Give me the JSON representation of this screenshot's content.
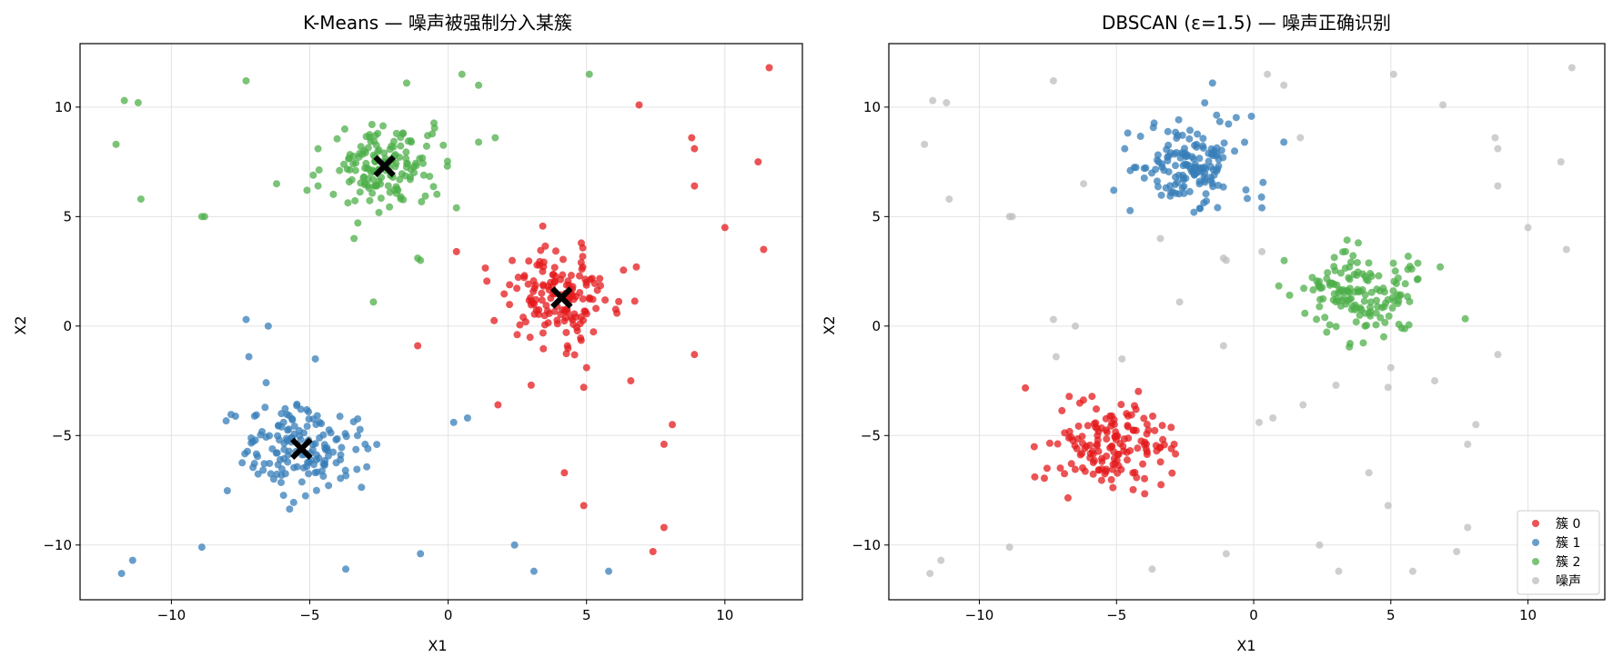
{
  "chart_data": [
    {
      "type": "scatter",
      "title": "K-Means — 噪声被强制分入某簇",
      "xlabel": "X1",
      "ylabel": "X2",
      "xlim": [
        -13.3,
        12.8
      ],
      "ylim": [
        -12.5,
        12.9
      ],
      "xticks": [
        -10,
        -5,
        0,
        5,
        10
      ],
      "yticks": [
        -10,
        -5,
        0,
        5,
        10
      ],
      "xtick_labels": [
        "−10",
        "−5",
        "0",
        "5",
        "10"
      ],
      "ytick_labels": [
        "−10",
        "−5",
        "0",
        "5",
        "10"
      ],
      "grid": true,
      "series": [
        {
          "color": "#e41a1c",
          "blobs": [
            {
              "center": [
                4.0,
                1.4
              ],
              "std": 1.05,
              "count": 150
            }
          ],
          "points": [
            [
              6.9,
              10.1
            ],
            [
              11.6,
              11.8
            ],
            [
              8.8,
              8.6
            ],
            [
              8.9,
              8.1
            ],
            [
              11.2,
              7.5
            ],
            [
              8.9,
              6.4
            ],
            [
              10.0,
              4.5
            ],
            [
              11.4,
              3.5
            ],
            [
              0.3,
              3.4
            ],
            [
              6.8,
              2.7
            ],
            [
              -1.1,
              -0.9
            ],
            [
              8.9,
              -1.3
            ],
            [
              5.0,
              -1.9
            ],
            [
              3.0,
              -2.7
            ],
            [
              4.9,
              -2.8
            ],
            [
              6.6,
              -2.5
            ],
            [
              1.8,
              -3.6
            ],
            [
              8.1,
              -4.5
            ],
            [
              7.8,
              -5.4
            ],
            [
              4.2,
              -6.7
            ],
            [
              4.9,
              -8.2
            ],
            [
              7.8,
              -9.2
            ],
            [
              7.4,
              -10.3
            ]
          ]
        },
        {
          "color": "#377eb8",
          "blobs": [
            {
              "center": [
                -5.4,
                -5.6
              ],
              "std": 1.05,
              "count": 150
            }
          ],
          "points": [
            [
              -7.3,
              0.3
            ],
            [
              -6.5,
              0.0
            ],
            [
              -7.2,
              -1.4
            ],
            [
              -4.8,
              -1.5
            ],
            [
              0.2,
              -4.4
            ],
            [
              0.7,
              -4.2
            ],
            [
              -2.9,
              -5.6
            ],
            [
              -3.0,
              -5.4
            ],
            [
              -8.9,
              -10.1
            ],
            [
              -11.4,
              -10.7
            ],
            [
              -11.8,
              -11.3
            ],
            [
              -3.7,
              -11.1
            ],
            [
              -1.0,
              -10.4
            ],
            [
              2.4,
              -10.0
            ],
            [
              3.1,
              -11.2
            ],
            [
              5.8,
              -11.2
            ]
          ]
        },
        {
          "color": "#4daf4a",
          "blobs": [
            {
              "center": [
                -2.2,
                7.3
              ],
              "std": 1.0,
              "count": 150
            }
          ],
          "points": [
            [
              -11.7,
              10.3
            ],
            [
              -11.2,
              10.2
            ],
            [
              -7.3,
              11.2
            ],
            [
              -12.0,
              8.3
            ],
            [
              -11.1,
              5.8
            ],
            [
              -8.8,
              5.0
            ],
            [
              -8.9,
              5.0
            ],
            [
              -6.2,
              6.5
            ],
            [
              -5.1,
              6.2
            ],
            [
              -4.7,
              6.4
            ],
            [
              0.3,
              5.4
            ],
            [
              1.1,
              8.4
            ],
            [
              1.7,
              8.6
            ],
            [
              0.5,
              11.5
            ],
            [
              1.1,
              11.0
            ],
            [
              5.1,
              11.5
            ],
            [
              -1.5,
              11.1
            ],
            [
              -3.4,
              4.0
            ],
            [
              -1.1,
              3.1
            ],
            [
              -1.0,
              3.0
            ],
            [
              -2.7,
              1.1
            ],
            [
              -4.7,
              8.1
            ]
          ]
        }
      ],
      "centroids": [
        [
          -2.3,
          7.3
        ],
        [
          4.1,
          1.3
        ],
        [
          -5.3,
          -5.6
        ]
      ],
      "centroid_color": "#000000"
    },
    {
      "type": "scatter",
      "title": "DBSCAN (ε=1.5) — 噪声正确识别",
      "xlabel": "X1",
      "ylabel": "X2",
      "xlim": [
        -13.3,
        12.8
      ],
      "ylim": [
        -12.5,
        12.9
      ],
      "xticks": [
        -10,
        -5,
        0,
        5,
        10
      ],
      "yticks": [
        -10,
        -5,
        0,
        5,
        10
      ],
      "xtick_labels": [
        "−10",
        "−5",
        "0",
        "5",
        "10"
      ],
      "ytick_labels": [
        "−10",
        "−5",
        "0",
        "5",
        "10"
      ],
      "grid": true,
      "legend_position": "lower-right",
      "series": [
        {
          "name": "簇 0",
          "color": "#e41a1c",
          "blobs": [
            {
              "center": [
                -5.4,
                -5.6
              ],
              "std": 1.05,
              "count": 150
            }
          ],
          "points": [
            [
              -3.0,
              -5.6
            ],
            [
              -2.9,
              -5.4
            ]
          ]
        },
        {
          "name": "簇 1",
          "color": "#377eb8",
          "blobs": [
            {
              "center": [
                -2.2,
                7.3
              ],
              "std": 1.0,
              "count": 150
            }
          ],
          "points": [
            [
              -4.7,
              8.1
            ],
            [
              -5.1,
              6.2
            ],
            [
              0.3,
              5.4
            ],
            [
              1.1,
              8.4
            ],
            [
              -1.5,
              11.1
            ]
          ]
        },
        {
          "name": "簇 2",
          "color": "#4daf4a",
          "blobs": [
            {
              "center": [
                4.0,
                1.4
              ],
              "std": 1.05,
              "count": 150
            }
          ],
          "points": [
            [
              6.8,
              2.7
            ]
          ]
        },
        {
          "name": "噪声",
          "color": "#bdbdbd",
          "points": [
            [
              -11.7,
              10.3
            ],
            [
              -11.2,
              10.2
            ],
            [
              -7.3,
              11.2
            ],
            [
              -12.0,
              8.3
            ],
            [
              -11.1,
              5.8
            ],
            [
              -8.8,
              5.0
            ],
            [
              -8.9,
              5.0
            ],
            [
              -6.2,
              6.5
            ],
            [
              -3.4,
              4.0
            ],
            [
              -1.1,
              3.1
            ],
            [
              -1.0,
              3.0
            ],
            [
              -2.7,
              1.1
            ],
            [
              0.3,
              3.4
            ],
            [
              1.7,
              8.6
            ],
            [
              0.5,
              11.5
            ],
            [
              1.1,
              11.0
            ],
            [
              5.1,
              11.5
            ],
            [
              6.9,
              10.1
            ],
            [
              11.6,
              11.8
            ],
            [
              8.8,
              8.6
            ],
            [
              8.9,
              8.1
            ],
            [
              11.2,
              7.5
            ],
            [
              8.9,
              6.4
            ],
            [
              10.0,
              4.5
            ],
            [
              11.4,
              3.5
            ],
            [
              -7.3,
              0.3
            ],
            [
              -6.5,
              0.0
            ],
            [
              -7.2,
              -1.4
            ],
            [
              -4.8,
              -1.5
            ],
            [
              -1.1,
              -0.9
            ],
            [
              8.9,
              -1.3
            ],
            [
              5.0,
              -1.9
            ],
            [
              3.0,
              -2.7
            ],
            [
              4.9,
              -2.8
            ],
            [
              6.6,
              -2.5
            ],
            [
              1.8,
              -3.6
            ],
            [
              0.2,
              -4.4
            ],
            [
              0.7,
              -4.2
            ],
            [
              8.1,
              -4.5
            ],
            [
              7.8,
              -5.4
            ],
            [
              4.2,
              -6.7
            ],
            [
              4.9,
              -8.2
            ],
            [
              7.8,
              -9.2
            ],
            [
              7.4,
              -10.3
            ],
            [
              -8.9,
              -10.1
            ],
            [
              -11.4,
              -10.7
            ],
            [
              -11.8,
              -11.3
            ],
            [
              -3.7,
              -11.1
            ],
            [
              -1.0,
              -10.4
            ],
            [
              2.4,
              -10.0
            ],
            [
              3.1,
              -11.2
            ],
            [
              5.8,
              -11.2
            ]
          ]
        }
      ]
    }
  ]
}
